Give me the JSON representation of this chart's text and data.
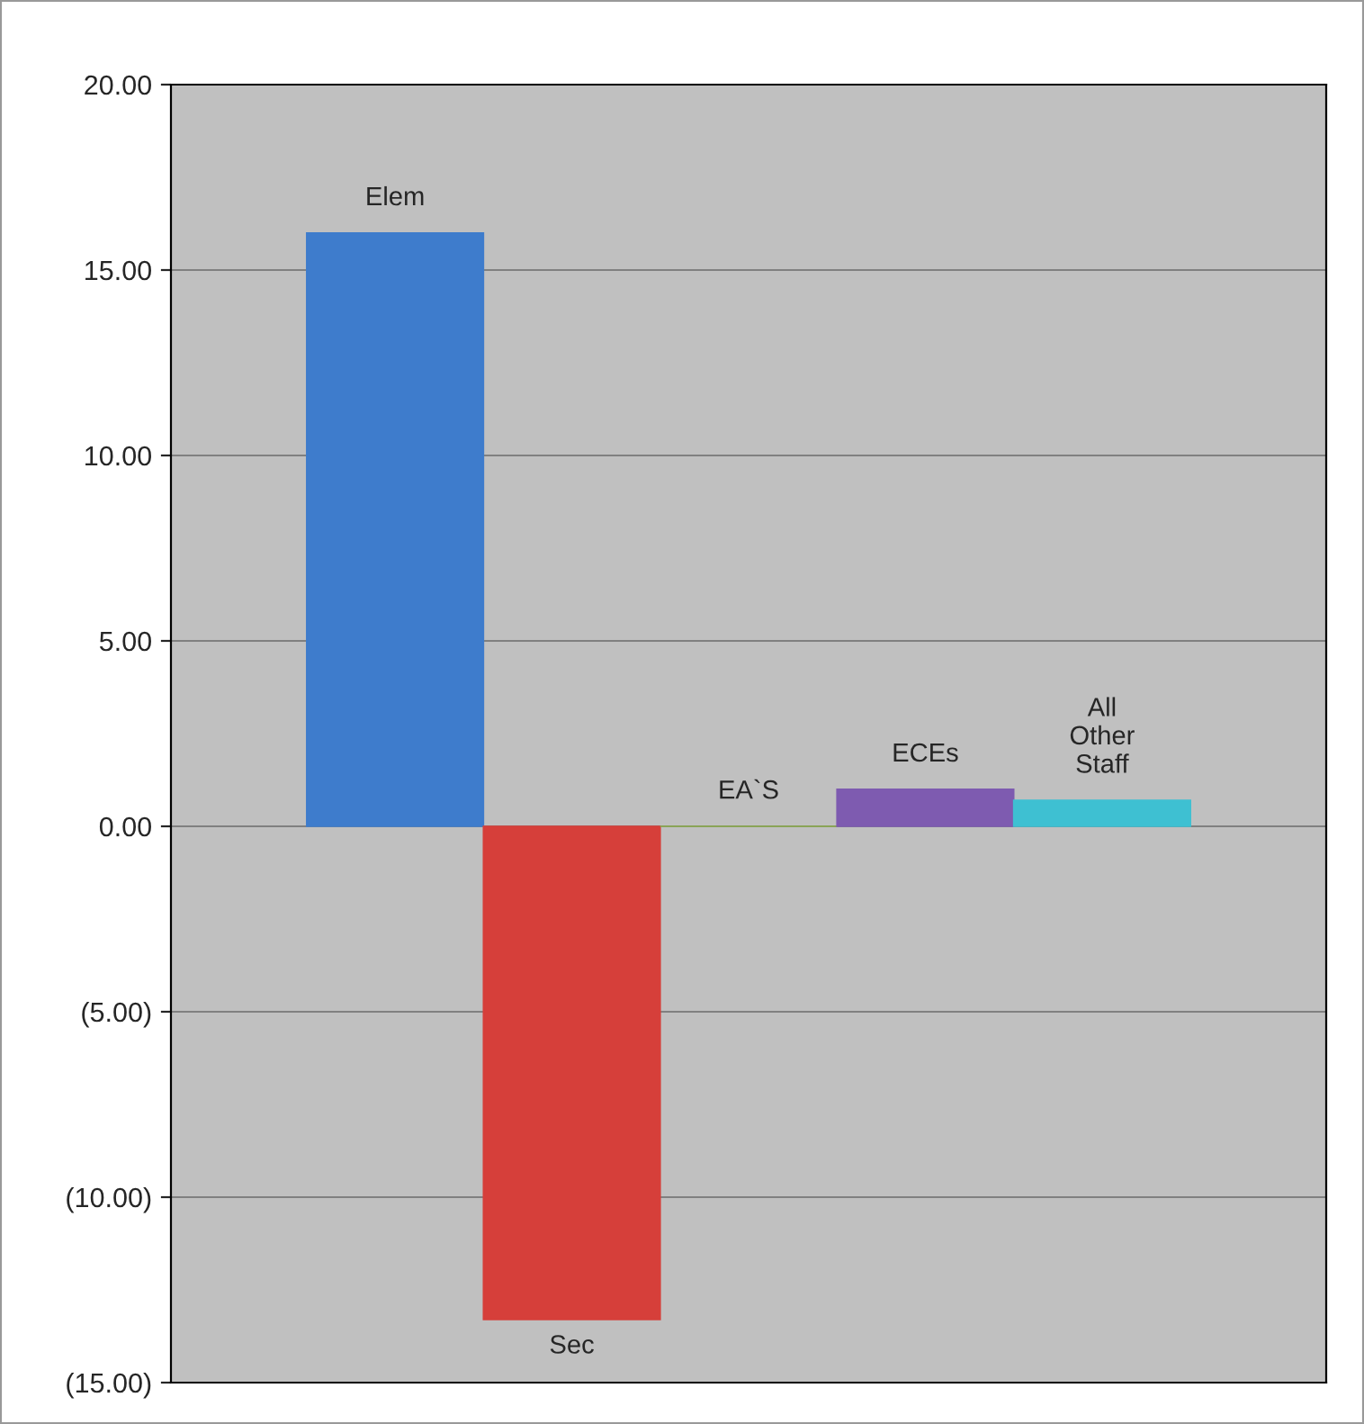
{
  "chart_data": {
    "type": "bar",
    "categories": [
      null
    ],
    "series": [
      {
        "name": "Elem",
        "color": "#3e7ccc",
        "values": [
          16.0
        ]
      },
      {
        "name": "Sec",
        "color": "#d63f3a",
        "values": [
          -13.3
        ]
      },
      {
        "name": "EA`S",
        "color": "#8db04a",
        "values": [
          0
        ]
      },
      {
        "name": "ECEs",
        "color": "#7e5bb0",
        "values": [
          1.0
        ]
      },
      {
        "name": "All Other Staff",
        "color": "#3ec0d2",
        "values": [
          0.7
        ]
      }
    ],
    "ylim": [
      -15,
      20
    ],
    "yticks": [
      {
        "value": -15,
        "label": "(15.00)"
      },
      {
        "value": -10,
        "label": "(10.00)"
      },
      {
        "value": -5,
        "label": "(5.00)"
      },
      {
        "value": 0,
        "label": "0.00"
      },
      {
        "value": 5,
        "label": "5.00"
      },
      {
        "value": 10,
        "label": "10.00"
      },
      {
        "value": 15,
        "label": "15.00"
      },
      {
        "value": 20,
        "label": "20.00"
      }
    ],
    "grid": "y",
    "tick_labels": "y"
  }
}
